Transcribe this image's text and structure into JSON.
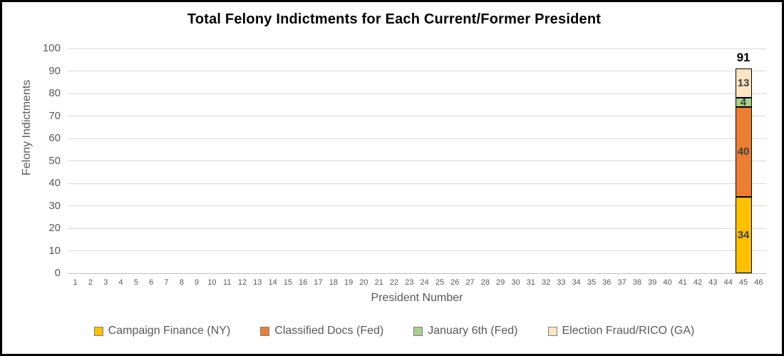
{
  "chart_data": {
    "type": "bar",
    "stacked": true,
    "title": "Total Felony Indictments for Each Current/Former President",
    "xlabel": "President Number",
    "ylabel": "Felony Indictments",
    "ylim": [
      0,
      100
    ],
    "yticks": [
      0,
      10,
      20,
      30,
      40,
      50,
      60,
      70,
      80,
      90,
      100
    ],
    "grid": "horizontal",
    "legend_position": "bottom",
    "categories": [
      "1",
      "2",
      "3",
      "4",
      "5",
      "6",
      "7",
      "8",
      "9",
      "10",
      "11",
      "12",
      "13",
      "14",
      "15",
      "16",
      "17",
      "18",
      "19",
      "20",
      "21",
      "22",
      "23",
      "24",
      "25",
      "26",
      "27",
      "28",
      "29",
      "30",
      "31",
      "32",
      "33",
      "34",
      "35",
      "36",
      "37",
      "38",
      "39",
      "40",
      "41",
      "42",
      "43",
      "44",
      "45",
      "46"
    ],
    "bar_category": "45",
    "series": [
      {
        "name": "Campaign Finance (NY)",
        "color": "#FFC000",
        "values_by_president": {
          "45": 34
        }
      },
      {
        "name": "Classified Docs (Fed)",
        "color": "#ED7D31",
        "values_by_president": {
          "45": 40
        }
      },
      {
        "name": "January 6th (Fed)",
        "color": "#A9D18E",
        "values_by_president": {
          "45": 4
        }
      },
      {
        "name": "Election Fraud/RICO (GA)",
        "color": "#FCE4C0",
        "values_by_president": {
          "45": 13
        }
      }
    ],
    "segment_labels": [
      "34",
      "40",
      "4",
      "13"
    ],
    "stack_total": 91,
    "stack_total_label": "91"
  },
  "colors": {
    "gridline": "#D9D9D9",
    "baseline": "#BFBFBF",
    "axis_text": "#595959",
    "segment_label": "#404040",
    "total_label": "#000000",
    "title_text": "#000000",
    "legend_text": "#595959",
    "bar_border": "#000000",
    "frame_border": "#000000"
  }
}
